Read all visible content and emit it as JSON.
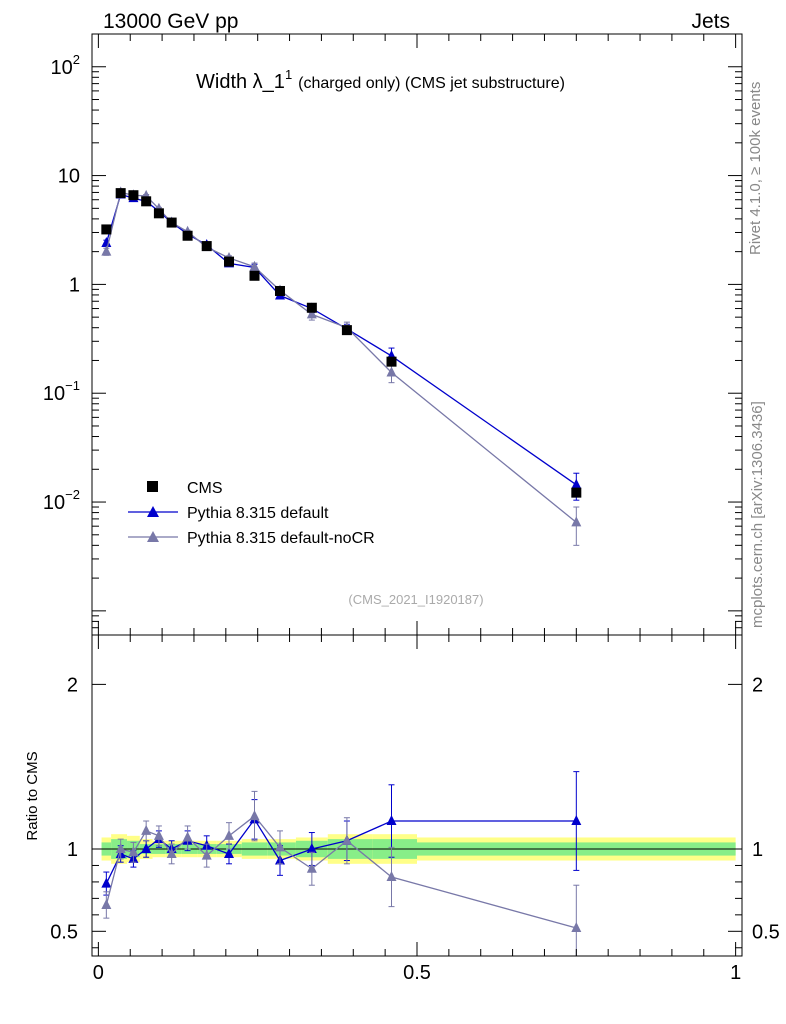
{
  "header": {
    "left": "13000 GeV pp",
    "right": "Jets"
  },
  "side_labels": {
    "rivet": "Rivet 4.1.0, ≥ 100k events",
    "mcplots": "mcplots.cern.ch [arXiv:1306.3436]"
  },
  "chart_data": {
    "type": "line",
    "title": "Width λ_1",
    "title_sup": "1",
    "title_suffix": "(charged only) (CMS jet substructure)",
    "analysis_id": "(CMS_2021_I1920187)",
    "xlim": [
      -0.01,
      1.01
    ],
    "x_ticks": [
      "0",
      "0.5",
      "1"
    ],
    "main": {
      "yscale": "log",
      "ylim": [
        0.0006,
        200
      ],
      "y_ticks": [
        {
          "base": "10",
          "exp": "2"
        },
        {
          "base": "10",
          "exp": ""
        },
        {
          "base": "1",
          "exp": ""
        },
        {
          "base": "10",
          "exp": "−1"
        },
        {
          "base": "10",
          "exp": "−2"
        }
      ]
    },
    "ratio": {
      "ylabel": "Ratio to CMS",
      "ylim": [
        0.35,
        2.3
      ],
      "y_ticks": [
        "2",
        "1",
        "0.5"
      ]
    },
    "legend": [
      "CMS",
      "Pythia 8.315 default",
      "Pythia 8.315 default-noCR"
    ],
    "colors": {
      "data": "#000000",
      "default": "#0000cc",
      "nocr": "#7878a8",
      "band_inner": "#88ee88",
      "band_outer": "#ffff88"
    },
    "bins": [
      {
        "x": 0.0125,
        "lo": 0.005,
        "hi": 0.02,
        "data": 3.2,
        "band1": 0.04,
        "band2": 0.07
      },
      {
        "x": 0.035,
        "lo": 0.02,
        "hi": 0.045,
        "data": 6.9,
        "band1": 0.06,
        "band2": 0.09
      },
      {
        "x": 0.055,
        "lo": 0.045,
        "hi": 0.065,
        "data": 6.6,
        "band1": 0.05,
        "band2": 0.08
      },
      {
        "x": 0.075,
        "lo": 0.065,
        "hi": 0.085,
        "data": 5.8,
        "band1": 0.03,
        "band2": 0.06
      },
      {
        "x": 0.095,
        "lo": 0.085,
        "hi": 0.105,
        "data": 4.5,
        "band1": 0.03,
        "band2": 0.05
      },
      {
        "x": 0.115,
        "lo": 0.105,
        "hi": 0.13,
        "data": 3.7,
        "band1": 0.03,
        "band2": 0.05
      },
      {
        "x": 0.14,
        "lo": 0.13,
        "hi": 0.155,
        "data": 2.8,
        "band1": 0.03,
        "band2": 0.05
      },
      {
        "x": 0.17,
        "lo": 0.155,
        "hi": 0.185,
        "data": 2.25,
        "band1": 0.03,
        "band2": 0.05
      },
      {
        "x": 0.205,
        "lo": 0.185,
        "hi": 0.225,
        "data": 1.62,
        "band1": 0.03,
        "band2": 0.05
      },
      {
        "x": 0.245,
        "lo": 0.225,
        "hi": 0.265,
        "data": 1.2,
        "band1": 0.04,
        "band2": 0.06
      },
      {
        "x": 0.285,
        "lo": 0.265,
        "hi": 0.31,
        "data": 0.87,
        "band1": 0.04,
        "band2": 0.06
      },
      {
        "x": 0.335,
        "lo": 0.31,
        "hi": 0.36,
        "data": 0.61,
        "band1": 0.05,
        "band2": 0.07
      },
      {
        "x": 0.39,
        "lo": 0.36,
        "hi": 0.43,
        "data": 0.38,
        "band1": 0.06,
        "band2": 0.09
      },
      {
        "x": 0.46,
        "lo": 0.43,
        "hi": 0.5,
        "data": 0.195,
        "band1": 0.06,
        "band2": 0.09
      },
      {
        "x": 0.75,
        "lo": 0.5,
        "hi": 1.0,
        "data": 0.0122,
        "band1": 0.04,
        "band2": 0.07
      }
    ],
    "series": [
      {
        "name": "Pythia 8.315 default",
        "values": [
          2.4,
          6.7,
          6.2,
          5.8,
          4.7,
          3.7,
          2.9,
          2.3,
          1.56,
          1.43,
          0.79,
          0.6,
          0.39,
          0.22,
          0.0144
        ],
        "errors": [
          0.15,
          0.25,
          0.25,
          0.2,
          0.15,
          0.12,
          0.1,
          0.08,
          0.06,
          0.1,
          0.05,
          0.05,
          0.04,
          0.04,
          0.004
        ],
        "ratio": [
          0.79,
          0.97,
          0.94,
          1.0,
          1.06,
          1.0,
          1.05,
          1.02,
          0.97,
          1.18,
          0.93,
          1.0,
          1.05,
          1.17,
          1.17
        ],
        "ratio_err": [
          0.07,
          0.05,
          0.05,
          0.05,
          0.05,
          0.05,
          0.06,
          0.06,
          0.06,
          0.12,
          0.09,
          0.1,
          0.12,
          0.22,
          0.3
        ]
      },
      {
        "name": "Pythia 8.315 default-noCR",
        "values": [
          2.0,
          7.0,
          6.6,
          6.5,
          4.95,
          3.7,
          3.05,
          2.2,
          1.75,
          1.45,
          0.88,
          0.53,
          0.4,
          0.155,
          0.0065
        ],
        "errors": [
          0.15,
          0.25,
          0.25,
          0.2,
          0.15,
          0.12,
          0.1,
          0.08,
          0.08,
          0.12,
          0.07,
          0.06,
          0.05,
          0.03,
          0.0025
        ],
        "ratio": [
          0.66,
          1.0,
          0.98,
          1.11,
          1.08,
          0.97,
          1.07,
          0.96,
          1.08,
          1.2,
          1.01,
          0.88,
          1.05,
          0.83,
          0.52
        ],
        "ratio_err": [
          0.08,
          0.06,
          0.06,
          0.06,
          0.06,
          0.06,
          0.07,
          0.07,
          0.08,
          0.15,
          0.1,
          0.1,
          0.14,
          0.18,
          0.26
        ]
      }
    ]
  }
}
